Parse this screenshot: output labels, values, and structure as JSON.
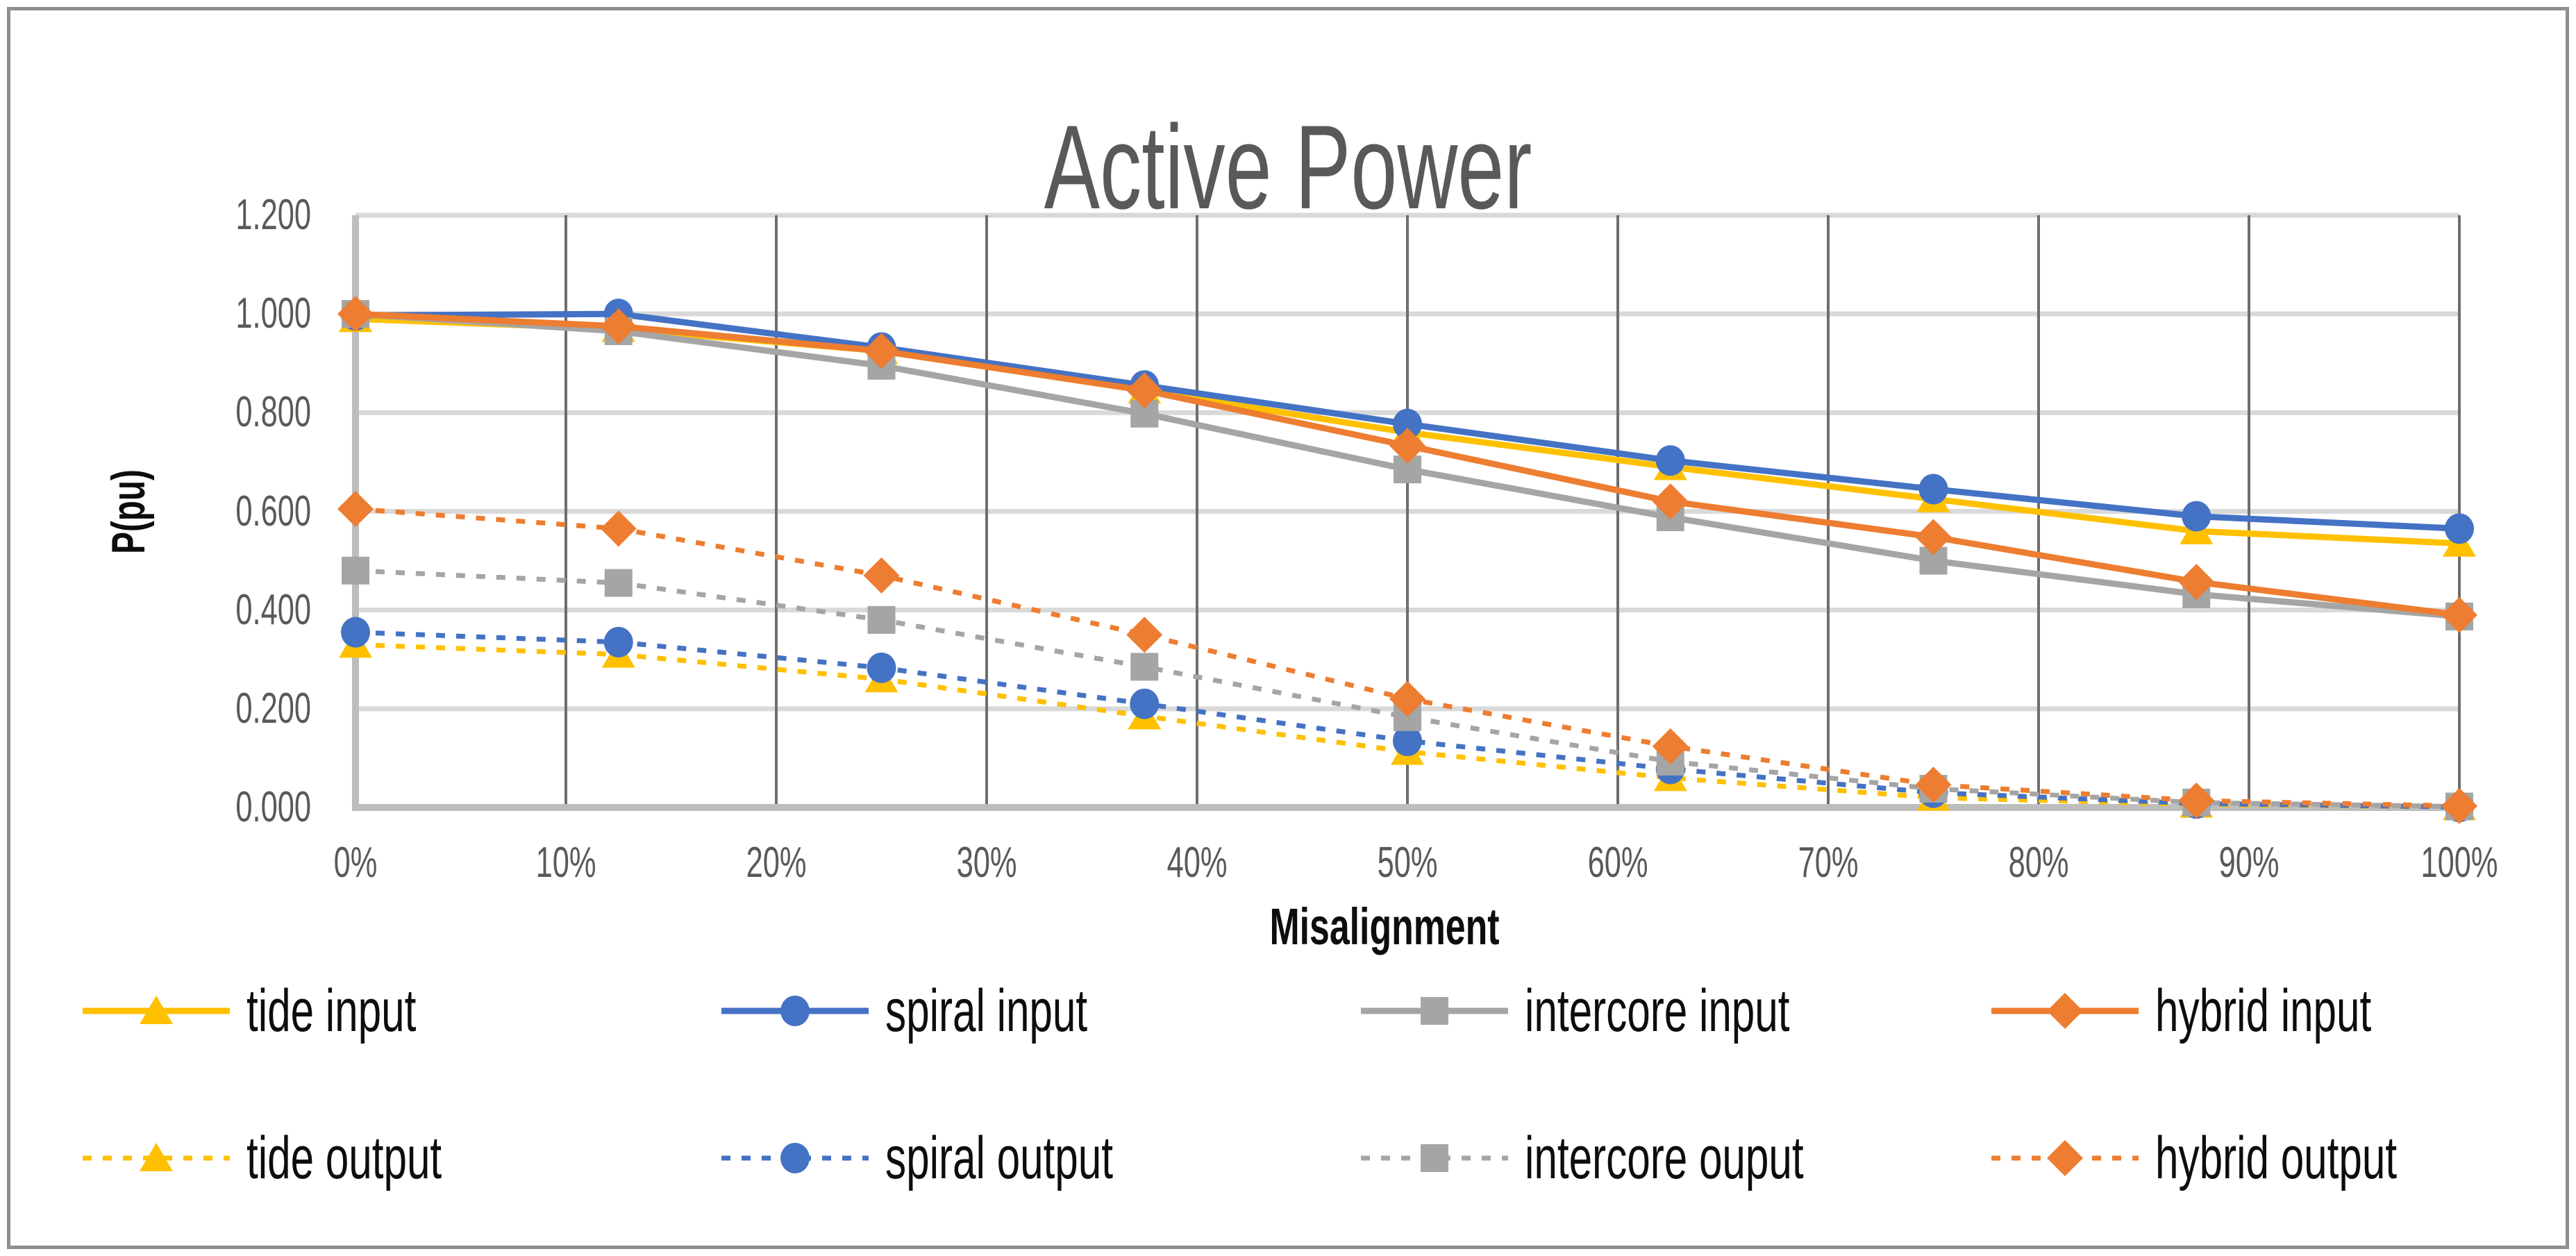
{
  "frame": {
    "border_color": "#8f8f8f"
  },
  "chart_data": {
    "type": "line",
    "title": "Active Power",
    "xlabel": "Misalignment",
    "ylabel": "P(pu)",
    "x_tick_labels": [
      "0%",
      "10%",
      "20%",
      "30%",
      "40%",
      "50%",
      "60%",
      "70%",
      "80%",
      "90%",
      "100%"
    ],
    "y_tick_labels": [
      "0.000",
      "0.200",
      "0.400",
      "0.600",
      "0.800",
      "1.000",
      "1.200"
    ],
    "ylim": [
      0.0,
      1.2
    ],
    "y_step": 0.2,
    "x_axis_range_percent": [
      0,
      100
    ],
    "x_percent": [
      0,
      12.5,
      25,
      37.5,
      50,
      62.5,
      75,
      87.5,
      100
    ],
    "grid": {
      "vertical": true,
      "horizontal": true
    },
    "legend_position": "bottom",
    "colors": {
      "tide": "#FFC000",
      "spiral": "#4472C4",
      "intercore": "#A5A5A5",
      "hybrid": "#ED7D31",
      "title_text": "#595959",
      "tick_text": "#595959",
      "v_gridline": "#6e6e6e",
      "h_gridline": "#d9d9d9",
      "axis_line": "#bdbdbd"
    },
    "series": [
      {
        "name": "tide input",
        "color": "#FFC000",
        "marker": "triangle",
        "line": "solid",
        "values": [
          0.99,
          0.97,
          0.925,
          0.845,
          0.76,
          0.69,
          0.625,
          0.56,
          0.535
        ]
      },
      {
        "name": "spiral input",
        "color": "#4472C4",
        "marker": "circle",
        "line": "solid",
        "values": [
          0.997,
          1.0,
          0.932,
          0.855,
          0.777,
          0.703,
          0.645,
          0.59,
          0.565
        ]
      },
      {
        "name": "intercore input",
        "color": "#A5A5A5",
        "marker": "square",
        "line": "solid",
        "values": [
          1.0,
          0.965,
          0.895,
          0.798,
          0.685,
          0.588,
          0.5,
          0.432,
          0.387
        ]
      },
      {
        "name": "hybrid input",
        "color": "#ED7D31",
        "marker": "diamond",
        "line": "solid",
        "values": [
          1.0,
          0.975,
          0.925,
          0.845,
          0.733,
          0.62,
          0.548,
          0.457,
          0.39
        ]
      },
      {
        "name": "tide output",
        "color": "#FFC000",
        "marker": "triangle",
        "line": "dotted",
        "values": [
          0.33,
          0.31,
          0.26,
          0.185,
          0.113,
          0.06,
          0.02,
          0.006,
          0.001
        ]
      },
      {
        "name": "spiral output",
        "color": "#4472C4",
        "marker": "circle",
        "line": "dotted",
        "values": [
          0.355,
          0.335,
          0.283,
          0.21,
          0.135,
          0.078,
          0.03,
          0.008,
          0.001
        ]
      },
      {
        "name": "intercore ouput",
        "color": "#A5A5A5",
        "marker": "square",
        "line": "dotted",
        "values": [
          0.48,
          0.455,
          0.38,
          0.285,
          0.183,
          0.093,
          0.038,
          0.01,
          0.002
        ]
      },
      {
        "name": "hybrid output",
        "color": "#ED7D31",
        "marker": "diamond",
        "line": "dotted",
        "values": [
          0.605,
          0.565,
          0.47,
          0.35,
          0.22,
          0.124,
          0.046,
          0.014,
          0.003
        ]
      }
    ],
    "legend_rows": [
      [
        "tide input",
        "spiral input",
        "intercore input",
        "hybrid input"
      ],
      [
        "tide output",
        "spiral output",
        "intercore ouput",
        "hybrid output"
      ]
    ]
  }
}
